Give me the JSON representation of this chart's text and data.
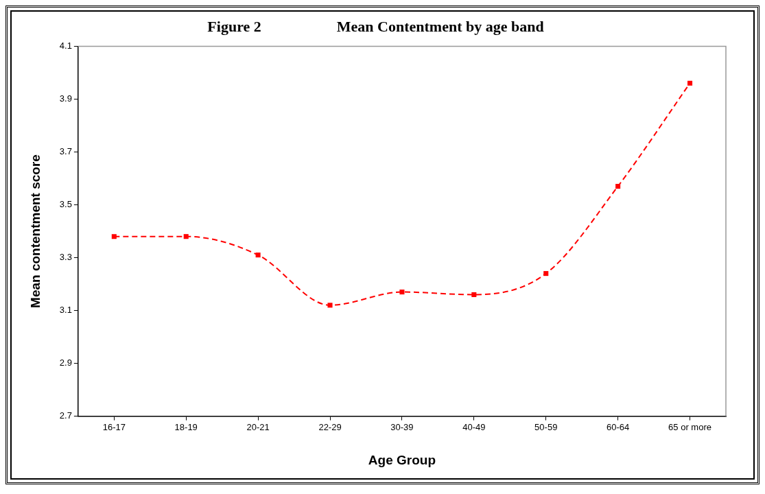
{
  "chart_data": {
    "type": "line",
    "title": "Figure 2                    Mean Contentment by age band",
    "xlabel": "Age Group",
    "ylabel": "Mean contentment score",
    "categories": [
      "16-17",
      "18-19",
      "20-21",
      "22-29",
      "30-39",
      "40-49",
      "50-59",
      "60-64",
      "65 or more"
    ],
    "series": [
      {
        "color": "#ff0000",
        "values": [
          3.38,
          3.38,
          3.31,
          3.12,
          3.17,
          3.16,
          3.24,
          3.57,
          3.96
        ]
      }
    ],
    "ylim": [
      2.7,
      4.1
    ],
    "yticks": [
      2.7,
      2.9,
      3.1,
      3.3,
      3.5,
      3.7,
      3.9,
      4.1
    ],
    "grid": false,
    "legend": false,
    "marker": "square",
    "line_style": "dashed"
  }
}
